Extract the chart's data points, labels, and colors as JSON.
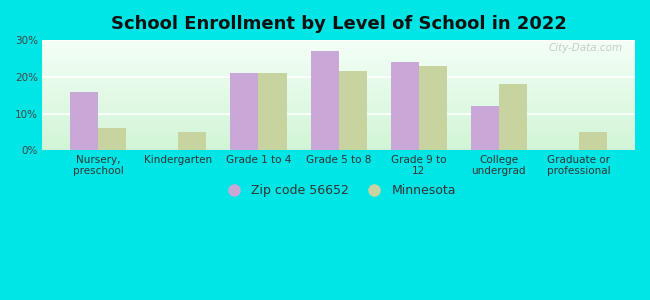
{
  "title": "School Enrollment by Level of School in 2022",
  "categories": [
    "Nursery,\npreschool",
    "Kindergarten",
    "Grade 1 to 4",
    "Grade 5 to 8",
    "Grade 9 to\n12",
    "College\nundergrad",
    "Graduate or\nprofessional"
  ],
  "zip_values": [
    16.0,
    0.0,
    21.0,
    27.0,
    24.0,
    12.0,
    0.0
  ],
  "mn_values": [
    6.0,
    5.0,
    21.0,
    21.5,
    23.0,
    18.0,
    5.0
  ],
  "zip_color": "#c9a8d8",
  "mn_color": "#c8d4a0",
  "background_color": "#00e5e5",
  "plot_bg_top": "#f5fff8",
  "plot_bg_bottom": "#d8f5d8",
  "ylim": [
    0,
    30
  ],
  "yticks": [
    0,
    10,
    20,
    30
  ],
  "ytick_labels": [
    "0%",
    "10%",
    "20%",
    "30%"
  ],
  "legend_zip_label": "Zip code 56652",
  "legend_mn_label": "Minnesota",
  "bar_width": 0.35,
  "title_fontsize": 13,
  "tick_fontsize": 7.5,
  "legend_fontsize": 9,
  "watermark": "City-Data.com"
}
